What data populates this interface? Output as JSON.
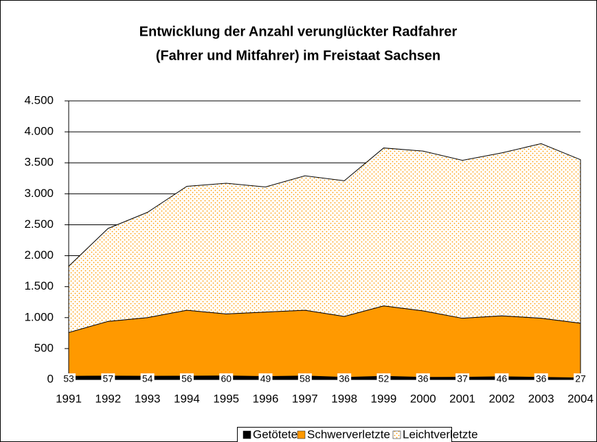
{
  "chart_data": {
    "type": "stacked_area",
    "title": "Entwicklung der Anzahl verunglückter Radfahrer",
    "subtitle": "(Fahrer und Mitfahrer) im Freistaat Sachsen",
    "categories": [
      "1991",
      "1992",
      "1993",
      "1994",
      "1995",
      "1996",
      "1997",
      "1998",
      "1999",
      "2000",
      "2001",
      "2002",
      "2003",
      "2004"
    ],
    "series": [
      {
        "name": "Getötete",
        "color": "#000000",
        "values": [
          53,
          57,
          54,
          56,
          60,
          49,
          58,
          36,
          52,
          36,
          37,
          46,
          36,
          27
        ]
      },
      {
        "name": "Schwerverletzte",
        "color": "#ff9900",
        "values": [
          707,
          883,
          946,
          1064,
          1000,
          1041,
          1062,
          984,
          1138,
          1074,
          953,
          984,
          954,
          883
        ]
      },
      {
        "name": "Leichtverletzte",
        "color": "#ff9900",
        "values": [
          1070,
          1500,
          1700,
          2000,
          2110,
          2020,
          2170,
          2190,
          2550,
          2580,
          2550,
          2630,
          2820,
          2640
        ]
      }
    ],
    "ylim": [
      0,
      4500
    ],
    "yticks": [
      0,
      500,
      {
        "value": 1000,
        "label": "1.000"
      },
      {
        "value": 1500,
        "label": "1.500"
      },
      {
        "value": 2000,
        "label": "2.000"
      },
      {
        "value": 2500,
        "label": "2.500"
      },
      {
        "value": 3000,
        "label": "3.000"
      },
      {
        "value": 3500,
        "label": "3.500"
      },
      {
        "value": 4000,
        "label": "4.000"
      },
      {
        "value": 4500,
        "label": "4.500"
      }
    ],
    "grid": true,
    "legend": "bottom"
  }
}
